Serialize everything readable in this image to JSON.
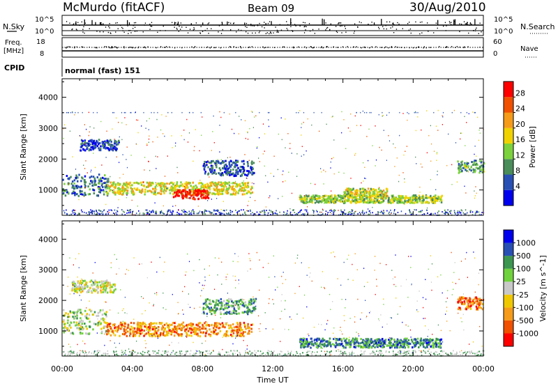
{
  "header": {
    "station": "McMurdo (fitACF)",
    "beam": "Beam 09",
    "date": "30/Aug/2010"
  },
  "ancillary": {
    "nsky_label": "N.Sky",
    "nsky_ticks": [
      "10^5",
      "10^0"
    ],
    "nsearch_label": "N.Search",
    "nsearch_ticks": [
      "10^5",
      "10^0"
    ],
    "freq_label_1": "Freq.",
    "freq_label_2": "[MHz]",
    "freq_ticks": [
      "18",
      "8"
    ],
    "nave_label": "Nave",
    "nave_ticks": [
      "60",
      "0"
    ],
    "cpid_label": "CPID",
    "cpid_value": "normal (fast) 151"
  },
  "colors": {
    "power": [
      "#0000ee",
      "#2850b4",
      "#4a8c5a",
      "#7bd23c",
      "#f0d200",
      "#f59b19",
      "#f05000",
      "#ff0000"
    ],
    "velocity": [
      "#ff0000",
      "#f05000",
      "#f59b19",
      "#f0c800",
      "#c8c8c8",
      "#70d23c",
      "#3c9650",
      "#2850b4",
      "#0000ee"
    ]
  },
  "chart_data": [
    {
      "type": "heatmap",
      "panel": "power",
      "xlabel": "",
      "ylabel": "Slant Range [km]",
      "x_ticks": [
        "00:00",
        "04:00",
        "08:00",
        "12:00",
        "16:00",
        "20:00",
        "00:00"
      ],
      "xlim_hours": [
        0,
        24
      ],
      "y_ticks": [
        1000,
        2000,
        3000,
        4000
      ],
      "ylim_km": [
        180,
        4600
      ],
      "colorbar_label": "Power [dB]",
      "colorbar_ticks": [
        4,
        8,
        12,
        16,
        20,
        24,
        28
      ],
      "colorbar_range": [
        0,
        32
      ],
      "echo_regions": [
        {
          "t_start": 0.0,
          "t_end": 2.6,
          "r_center": 1150,
          "r_width": 700,
          "level": 0.25
        },
        {
          "t_start": 1.0,
          "t_end": 3.2,
          "r_center": 2450,
          "r_width": 350,
          "level": 0.15
        },
        {
          "t_start": 2.5,
          "t_end": 10.8,
          "r_center": 1050,
          "r_width": 400,
          "level": 0.55
        },
        {
          "t_start": 6.3,
          "t_end": 8.3,
          "r_center": 850,
          "r_width": 300,
          "level": 0.95
        },
        {
          "t_start": 8.0,
          "t_end": 10.9,
          "r_center": 1700,
          "r_width": 500,
          "level": 0.2
        },
        {
          "t_start": 13.5,
          "t_end": 21.6,
          "r_center": 700,
          "r_width": 250,
          "level": 0.45
        },
        {
          "t_start": 16.0,
          "t_end": 18.5,
          "r_center": 900,
          "r_width": 300,
          "level": 0.5
        },
        {
          "t_start": 22.5,
          "t_end": 24.0,
          "r_center": 1750,
          "r_width": 400,
          "level": 0.35
        }
      ]
    },
    {
      "type": "heatmap",
      "panel": "velocity",
      "xlabel": "Time UT",
      "ylabel": "Slant Range [km]",
      "x_ticks": [
        "00:00",
        "04:00",
        "08:00",
        "12:00",
        "16:00",
        "20:00",
        "00:00"
      ],
      "xlim_hours": [
        0,
        24
      ],
      "y_ticks": [
        1000,
        2000,
        3000,
        4000
      ],
      "ylim_km": [
        180,
        4600
      ],
      "colorbar_label": "Velocity [m s^-1]",
      "colorbar_ticks": [
        "1000",
        "500",
        "100",
        "25",
        "-25",
        "-100",
        "-500",
        "-1000"
      ],
      "echo_regions": [
        {
          "t_start": 0.0,
          "t_end": 2.5,
          "r_center": 1300,
          "r_width": 800,
          "level": 0.55
        },
        {
          "t_start": 0.5,
          "t_end": 3.0,
          "r_center": 2450,
          "r_width": 400,
          "level": 0.5
        },
        {
          "t_start": 2.5,
          "t_end": 10.8,
          "r_center": 1050,
          "r_width": 450,
          "level": 0.25
        },
        {
          "t_start": 8.0,
          "t_end": 11.0,
          "r_center": 1800,
          "r_width": 500,
          "level": 0.7
        },
        {
          "t_start": 13.5,
          "t_end": 21.6,
          "r_center": 600,
          "r_width": 300,
          "level": 0.75
        },
        {
          "t_start": 22.5,
          "t_end": 24.0,
          "r_center": 1900,
          "r_width": 400,
          "level": 0.2
        }
      ]
    }
  ]
}
